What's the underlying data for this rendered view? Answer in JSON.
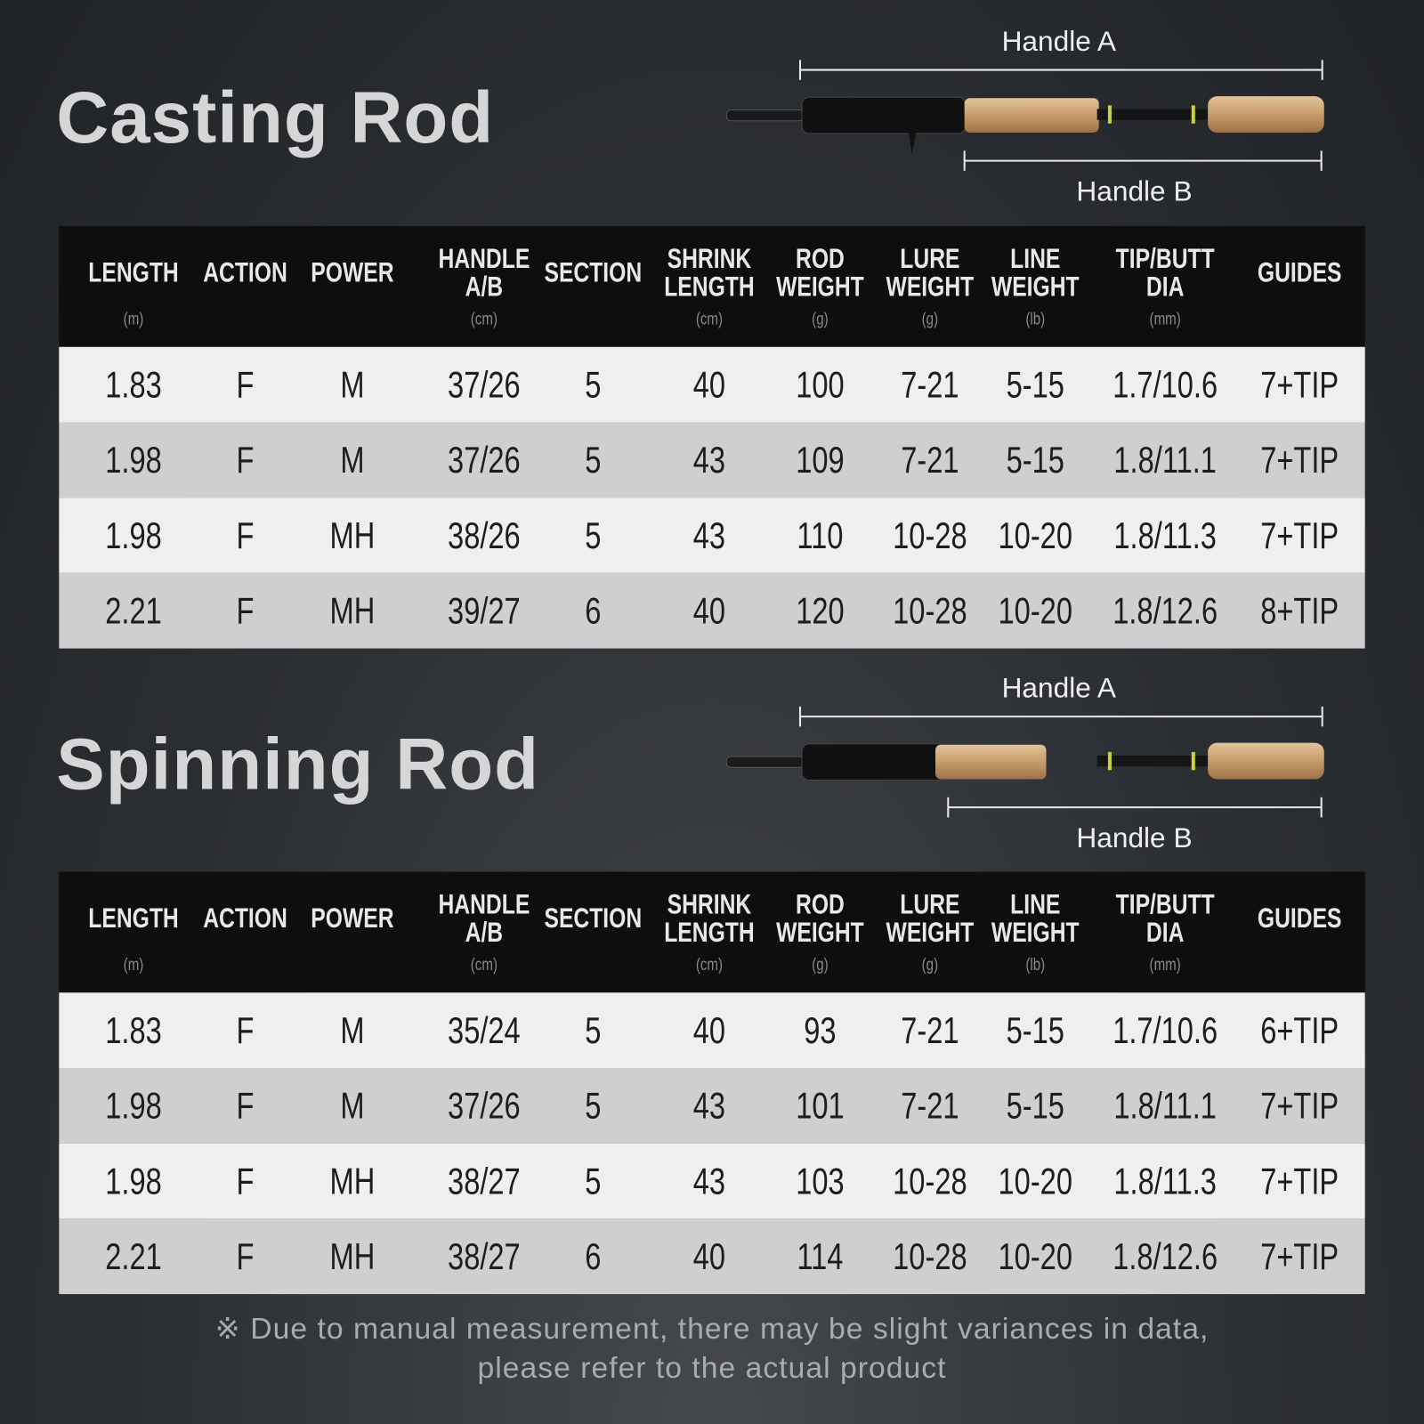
{
  "sections": [
    {
      "title": "Casting Rod",
      "handle_a": "Handle A",
      "handle_b": "Handle B",
      "table": {
        "headers": [
          {
            "lines": [
              "LENGTH"
            ],
            "unit": "(m)"
          },
          {
            "lines": [
              "ACTION"
            ]
          },
          {
            "lines": [
              "POWER"
            ]
          },
          {
            "lines": [
              "HANDLE",
              "A/B"
            ],
            "unit": "(cm)"
          },
          {
            "lines": [
              "SECTION"
            ]
          },
          {
            "lines": [
              "SHRINK",
              "LENGTH"
            ],
            "unit": "(cm)"
          },
          {
            "lines": [
              "ROD",
              "WEIGHT"
            ],
            "unit": "(g)"
          },
          {
            "lines": [
              "LURE",
              "WEIGHT"
            ],
            "unit": "(g)"
          },
          {
            "lines": [
              "LINE",
              "WEIGHT"
            ],
            "unit": "(lb)"
          },
          {
            "lines": [
              "TIP/BUTT",
              "DIA"
            ],
            "unit": "(mm)"
          },
          {
            "lines": [
              "GUIDES"
            ]
          }
        ],
        "rows": [
          [
            "1.83",
            "F",
            "M",
            "37/26",
            "5",
            "40",
            "100",
            "7-21",
            "5-15",
            "1.7/10.6",
            "7+TIP"
          ],
          [
            "1.98",
            "F",
            "M",
            "37/26",
            "5",
            "43",
            "109",
            "7-21",
            "5-15",
            "1.8/11.1",
            "7+TIP"
          ],
          [
            "1.98",
            "F",
            "MH",
            "38/26",
            "5",
            "43",
            "110",
            "10-28",
            "10-20",
            "1.8/11.3",
            "7+TIP"
          ],
          [
            "2.21",
            "F",
            "MH",
            "39/27",
            "6",
            "40",
            "120",
            "10-28",
            "10-20",
            "1.8/12.6",
            "8+TIP"
          ]
        ]
      }
    },
    {
      "title": "Spinning Rod",
      "handle_a": "Handle A",
      "handle_b": "Handle B",
      "table": {
        "headers": [
          {
            "lines": [
              "LENGTH"
            ],
            "unit": "(m)"
          },
          {
            "lines": [
              "ACTION"
            ]
          },
          {
            "lines": [
              "POWER"
            ]
          },
          {
            "lines": [
              "HANDLE",
              "A/B"
            ],
            "unit": "(cm)"
          },
          {
            "lines": [
              "SECTION"
            ]
          },
          {
            "lines": [
              "SHRINK",
              "LENGTH"
            ],
            "unit": "(cm)"
          },
          {
            "lines": [
              "ROD",
              "WEIGHT"
            ],
            "unit": "(g)"
          },
          {
            "lines": [
              "LURE",
              "WEIGHT"
            ],
            "unit": "(g)"
          },
          {
            "lines": [
              "LINE",
              "WEIGHT"
            ],
            "unit": "(lb)"
          },
          {
            "lines": [
              "TIP/BUTT",
              "DIA"
            ],
            "unit": "(mm)"
          },
          {
            "lines": [
              "GUIDES"
            ]
          }
        ],
        "rows": [
          [
            "1.83",
            "F",
            "M",
            "35/24",
            "5",
            "40",
            "93",
            "7-21",
            "5-15",
            "1.7/10.6",
            "6+TIP"
          ],
          [
            "1.98",
            "F",
            "M",
            "37/26",
            "5",
            "43",
            "101",
            "7-21",
            "5-15",
            "1.8/11.1",
            "7+TIP"
          ],
          [
            "1.98",
            "F",
            "MH",
            "38/27",
            "5",
            "43",
            "103",
            "10-28",
            "10-20",
            "1.8/11.3",
            "7+TIP"
          ],
          [
            "2.21",
            "F",
            "MH",
            "38/27",
            "6",
            "40",
            "114",
            "10-28",
            "10-20",
            "1.8/12.6",
            "7+TIP"
          ]
        ]
      }
    }
  ],
  "footnote": [
    "※ Due to manual measurement, there may be slight variances in data,",
    "please refer to the actual product"
  ]
}
